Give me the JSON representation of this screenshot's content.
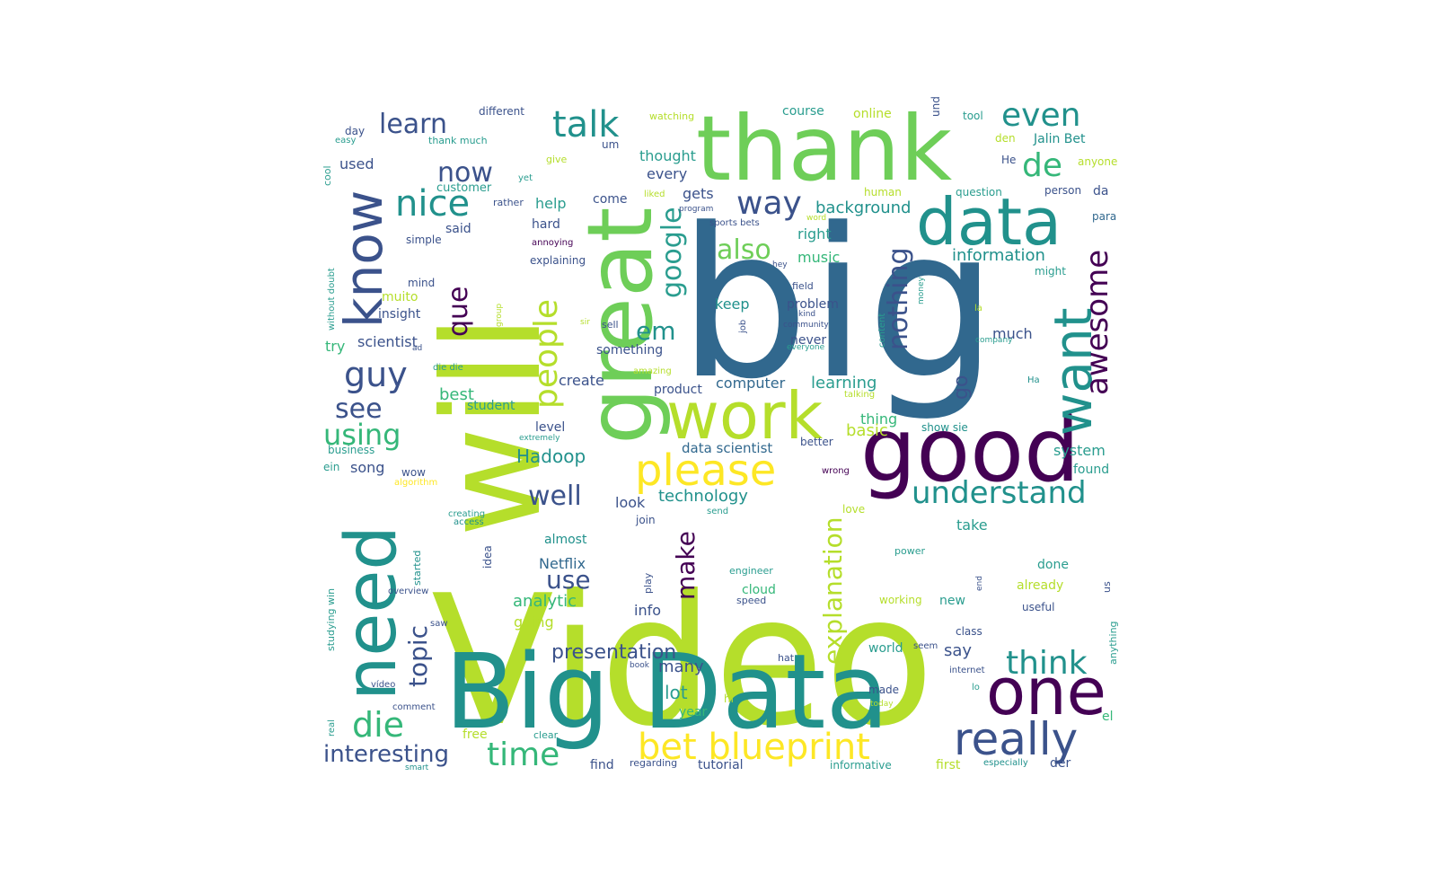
{
  "palette": {
    "purple": "#440154",
    "indigo": "#3b528b",
    "slate": "#31688e",
    "teal": "#21918c",
    "seagreen": "#2a9d8f",
    "green": "#35b779",
    "lightgreen": "#6ece58",
    "lime": "#b5de2b",
    "yellow": "#fde725"
  },
  "words": [
    {
      "text": "Video",
      "c": "lime"
    },
    {
      "text": "big",
      "c": "slate"
    },
    {
      "text": "Big Data",
      "c": "teal"
    },
    {
      "text": "will",
      "c": "lime"
    },
    {
      "text": "thank",
      "c": "lightgreen"
    },
    {
      "text": "great",
      "c": "lightgreen"
    },
    {
      "text": "good",
      "c": "purple"
    },
    {
      "text": "data",
      "c": "teal"
    },
    {
      "text": "work",
      "c": "lime"
    },
    {
      "text": "need",
      "c": "teal"
    },
    {
      "text": "one",
      "c": "purple"
    },
    {
      "text": "want",
      "c": "teal"
    },
    {
      "text": "know",
      "c": "indigo"
    },
    {
      "text": "really",
      "c": "indigo"
    },
    {
      "text": "please",
      "c": "yellow"
    },
    {
      "text": "bet blueprint",
      "c": "yellow"
    },
    {
      "text": "talk",
      "c": "teal"
    },
    {
      "text": "nice",
      "c": "teal"
    },
    {
      "text": "understand",
      "c": "teal"
    },
    {
      "text": "think",
      "c": "teal"
    },
    {
      "text": "die",
      "c": "green"
    },
    {
      "text": "even",
      "c": "teal"
    },
    {
      "text": "de",
      "c": "green"
    },
    {
      "text": "way",
      "c": "indigo"
    },
    {
      "text": "guy",
      "c": "indigo"
    },
    {
      "text": "time",
      "c": "green"
    },
    {
      "text": "people",
      "c": "lime"
    },
    {
      "text": "awesome",
      "c": "purple"
    },
    {
      "text": "google",
      "c": "seagreen"
    },
    {
      "text": "using",
      "c": "green"
    },
    {
      "text": "learn",
      "c": "indigo"
    },
    {
      "text": "que",
      "c": "purple"
    },
    {
      "text": "well",
      "c": "indigo"
    },
    {
      "text": "nothing",
      "c": "indigo"
    },
    {
      "text": "also",
      "c": "lightgreen"
    },
    {
      "text": "explanation",
      "c": "lime"
    },
    {
      "text": "make",
      "c": "purple"
    },
    {
      "text": "topic",
      "c": "indigo"
    },
    {
      "text": "interesting",
      "c": "indigo"
    },
    {
      "text": "see",
      "c": "indigo"
    },
    {
      "text": "now",
      "c": "indigo"
    },
    {
      "text": "em",
      "c": "teal"
    },
    {
      "text": "use",
      "c": "indigo"
    },
    {
      "text": "presentation",
      "c": "indigo"
    },
    {
      "text": "go",
      "c": "indigo"
    },
    {
      "text": "lot",
      "c": "seagreen"
    },
    {
      "text": "best",
      "c": "green"
    },
    {
      "text": "Hadoop",
      "c": "teal"
    },
    {
      "text": "learning",
      "c": "seagreen"
    },
    {
      "text": "technology",
      "c": "teal"
    },
    {
      "text": "information",
      "c": "teal"
    },
    {
      "text": "analytic",
      "c": "green"
    },
    {
      "text": "many",
      "c": "indigo"
    },
    {
      "text": "say",
      "c": "indigo"
    },
    {
      "text": "scientist",
      "c": "indigo"
    },
    {
      "text": "background",
      "c": "teal"
    },
    {
      "text": "computer",
      "c": "slate"
    },
    {
      "text": "thing",
      "c": "green"
    },
    {
      "text": "basic",
      "c": "lime"
    },
    {
      "text": "data scientist",
      "c": "slate"
    },
    {
      "text": "Netflix",
      "c": "slate"
    },
    {
      "text": "song",
      "c": "indigo"
    },
    {
      "text": "much",
      "c": "indigo"
    },
    {
      "text": "system",
      "c": "seagreen"
    },
    {
      "text": "take",
      "c": "seagreen"
    },
    {
      "text": "info",
      "c": "indigo"
    },
    {
      "text": "going",
      "c": "lime"
    },
    {
      "text": "look",
      "c": "indigo"
    },
    {
      "text": "help",
      "c": "seagreen"
    },
    {
      "text": "music",
      "c": "green"
    },
    {
      "text": "keep",
      "c": "teal"
    },
    {
      "text": "create",
      "c": "indigo"
    },
    {
      "text": "product",
      "c": "indigo"
    },
    {
      "text": "student",
      "c": "seagreen"
    },
    {
      "text": "every",
      "c": "indigo"
    },
    {
      "text": "gets",
      "c": "indigo"
    },
    {
      "text": "thought",
      "c": "seagreen"
    },
    {
      "text": "course",
      "c": "seagreen"
    },
    {
      "text": "online",
      "c": "lime"
    },
    {
      "text": "used",
      "c": "indigo"
    },
    {
      "text": "come",
      "c": "indigo"
    },
    {
      "text": "hard",
      "c": "indigo"
    },
    {
      "text": "said",
      "c": "indigo"
    },
    {
      "text": "right",
      "c": "seagreen"
    },
    {
      "text": "problem",
      "c": "indigo"
    },
    {
      "text": "never",
      "c": "indigo"
    },
    {
      "text": "something",
      "c": "indigo"
    },
    {
      "text": "level",
      "c": "indigo"
    },
    {
      "text": "try",
      "c": "green"
    },
    {
      "text": "insight",
      "c": "indigo"
    },
    {
      "text": "muito",
      "c": "lime"
    },
    {
      "text": "mind",
      "c": "indigo"
    },
    {
      "text": "simple",
      "c": "indigo"
    },
    {
      "text": "explaining",
      "c": "indigo"
    },
    {
      "text": "customer",
      "c": "seagreen"
    },
    {
      "text": "different",
      "c": "indigo"
    },
    {
      "text": "Jalin Bet",
      "c": "teal"
    },
    {
      "text": "found",
      "c": "seagreen"
    },
    {
      "text": "done",
      "c": "seagreen"
    },
    {
      "text": "already",
      "c": "lime"
    },
    {
      "text": "useful",
      "c": "indigo"
    },
    {
      "text": "cloud",
      "c": "green"
    },
    {
      "text": "working",
      "c": "lime"
    },
    {
      "text": "new",
      "c": "seagreen"
    },
    {
      "text": "almost",
      "c": "teal"
    },
    {
      "text": "love",
      "c": "lime"
    },
    {
      "text": "human",
      "c": "lime"
    },
    {
      "text": "tutorial",
      "c": "indigo"
    },
    {
      "text": "find",
      "c": "indigo"
    },
    {
      "text": "first",
      "c": "lime"
    },
    {
      "text": "der",
      "c": "indigo"
    },
    {
      "text": "year",
      "c": "green"
    },
    {
      "text": "free",
      "c": "lime"
    },
    {
      "text": "world",
      "c": "seagreen"
    },
    {
      "text": "made",
      "c": "indigo"
    },
    {
      "text": "el",
      "c": "green"
    },
    {
      "text": "da",
      "c": "indigo"
    },
    {
      "text": "class",
      "c": "indigo"
    },
    {
      "text": "anyone",
      "c": "lime"
    },
    {
      "text": "person",
      "c": "indigo"
    },
    {
      "text": "para",
      "c": "slate"
    },
    {
      "text": "tool",
      "c": "seagreen"
    },
    {
      "text": "question",
      "c": "seagreen"
    },
    {
      "text": "den",
      "c": "lime"
    },
    {
      "text": "Не",
      "c": "indigo"
    },
    {
      "text": "und",
      "c": "indigo"
    },
    {
      "text": "might",
      "c": "seagreen"
    },
    {
      "text": "better",
      "c": "indigo"
    },
    {
      "text": "wrong",
      "c": "purple"
    },
    {
      "text": "show sie",
      "c": "teal"
    },
    {
      "text": "wow",
      "c": "indigo"
    },
    {
      "text": "ein",
      "c": "seagreen"
    },
    {
      "text": "business",
      "c": "seagreen"
    },
    {
      "text": "algorithm",
      "c": "yellow"
    },
    {
      "text": "creating",
      "c": "seagreen"
    },
    {
      "text": "access",
      "c": "teal"
    },
    {
      "text": "join",
      "c": "indigo"
    },
    {
      "text": "send",
      "c": "seagreen"
    },
    {
      "text": "idea",
      "c": "indigo"
    },
    {
      "text": "started",
      "c": "teal"
    },
    {
      "text": "studying win",
      "c": "seagreen"
    },
    {
      "text": "overview",
      "c": "indigo"
    },
    {
      "text": "saw",
      "c": "indigo"
    },
    {
      "text": "vídeo",
      "c": "indigo"
    },
    {
      "text": "comment",
      "c": "indigo"
    },
    {
      "text": "real",
      "c": "seagreen"
    },
    {
      "text": "smart",
      "c": "teal"
    },
    {
      "text": "clear",
      "c": "seagreen"
    },
    {
      "text": "regarding",
      "c": "indigo"
    },
    {
      "text": "informative",
      "c": "seagreen"
    },
    {
      "text": "especially",
      "c": "teal"
    },
    {
      "text": "hi",
      "c": "lime"
    },
    {
      "text": "book",
      "c": "indigo"
    },
    {
      "text": "hat",
      "c": "indigo"
    },
    {
      "text": "internet",
      "c": "indigo"
    },
    {
      "text": "seem",
      "c": "indigo"
    },
    {
      "text": "lo",
      "c": "seagreen"
    },
    {
      "text": "today",
      "c": "lime"
    },
    {
      "text": "anything",
      "c": "seagreen"
    },
    {
      "text": "us",
      "c": "indigo"
    },
    {
      "text": "end",
      "c": "indigo"
    },
    {
      "text": "power",
      "c": "seagreen"
    },
    {
      "text": "speed",
      "c": "indigo"
    },
    {
      "text": "engineer",
      "c": "seagreen"
    },
    {
      "text": "play",
      "c": "indigo"
    },
    {
      "text": "talking",
      "c": "lime"
    },
    {
      "text": "На",
      "c": "teal"
    },
    {
      "text": "amazing",
      "c": "lime"
    },
    {
      "text": "everyone",
      "c": "seagreen"
    },
    {
      "text": "community",
      "c": "indigo"
    },
    {
      "text": "kind",
      "c": "indigo"
    },
    {
      "text": "job",
      "c": "indigo"
    },
    {
      "text": "company",
      "c": "seagreen"
    },
    {
      "text": "la",
      "c": "lime"
    },
    {
      "text": "content",
      "c": "seagreen"
    },
    {
      "text": "money",
      "c": "seagreen"
    },
    {
      "text": "field",
      "c": "indigo"
    },
    {
      "text": "hey",
      "c": "indigo"
    },
    {
      "text": "sell",
      "c": "indigo"
    },
    {
      "text": "sir",
      "c": "lime"
    },
    {
      "text": "ad",
      "c": "indigo"
    },
    {
      "text": "group",
      "c": "lime"
    },
    {
      "text": "without doubt",
      "c": "seagreen"
    },
    {
      "text": "die die",
      "c": "seagreen"
    },
    {
      "text": "extremely",
      "c": "seagreen"
    },
    {
      "text": "annoying",
      "c": "purple"
    },
    {
      "text": "rather",
      "c": "indigo"
    },
    {
      "text": "yet",
      "c": "seagreen"
    },
    {
      "text": "give",
      "c": "lime"
    },
    {
      "text": "um",
      "c": "indigo"
    },
    {
      "text": "liked",
      "c": "lime"
    },
    {
      "text": "program",
      "c": "indigo"
    },
    {
      "text": "sports bets",
      "c": "indigo"
    },
    {
      "text": "word",
      "c": "lime"
    },
    {
      "text": "watching",
      "c": "lime"
    },
    {
      "text": "cool",
      "c": "seagreen"
    },
    {
      "text": "day",
      "c": "indigo"
    },
    {
      "text": "easy",
      "c": "seagreen"
    },
    {
      "text": "thank much",
      "c": "seagreen"
    }
  ]
}
